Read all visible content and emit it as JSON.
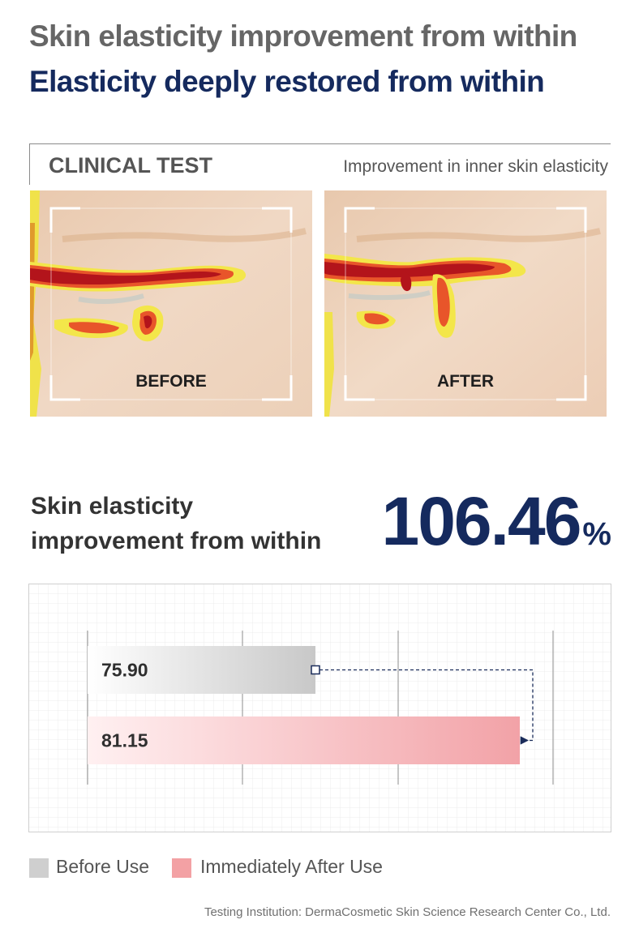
{
  "header": {
    "title": "Skin elasticity improvement from within",
    "subtitle": "Elasticity deeply restored from within"
  },
  "clinical": {
    "label": "CLINICAL TEST",
    "description": "Improvement in inner skin elasticity",
    "before_label": "BEFORE",
    "after_label": "AFTER"
  },
  "result": {
    "label_line1": "Skin elasticity",
    "label_line2": "improvement from within",
    "value": "106.46",
    "unit": "%"
  },
  "chart_data": {
    "type": "bar",
    "orientation": "horizontal",
    "categories": [
      "Before Use",
      "Immediately After Use"
    ],
    "values": [
      75.9,
      81.15
    ],
    "value_labels": [
      "75.90",
      "81.15"
    ],
    "colors": [
      "#c8c8c8",
      "#f2a2a7"
    ],
    "grid": true,
    "legend": "bottom-left"
  },
  "legend": {
    "items": [
      {
        "label": "Before Use",
        "color": "#cfcfcf"
      },
      {
        "label": "Immediately After Use",
        "color": "#f3a1a4"
      }
    ]
  },
  "footnote": "Testing Institution: DermaCosmetic Skin Science Research Center Co., Ltd."
}
